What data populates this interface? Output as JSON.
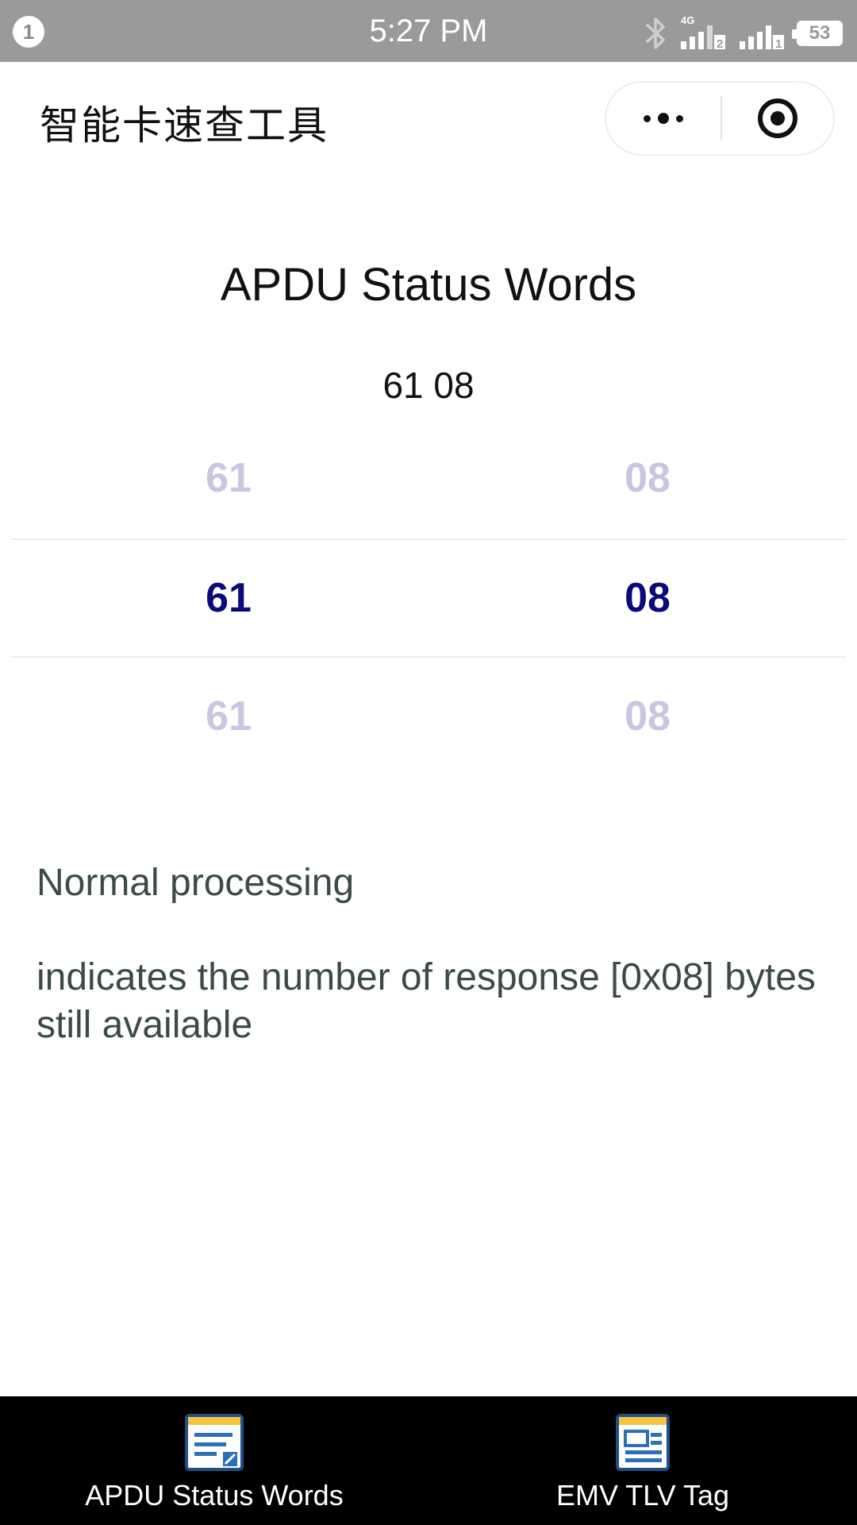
{
  "status_bar": {
    "notification_count": "1",
    "time": "5:27 PM",
    "network_label": "4G",
    "sim1_index": "2",
    "sim2_index": "1",
    "battery_level": "53",
    "icons": [
      "bluetooth-icon",
      "signal-icon",
      "signal-icon",
      "battery-icon"
    ]
  },
  "header": {
    "title": "智能卡速查工具",
    "more_icon": "more-dots-icon",
    "close_icon": "target-circle-icon"
  },
  "main": {
    "title": "APDU Status Words",
    "selected_code": "61 08",
    "picker": {
      "sw1": {
        "above": "61",
        "selected": "61",
        "below": "61"
      },
      "sw2": {
        "above": "08",
        "selected": "08",
        "below": "08"
      }
    },
    "category": "Normal processing",
    "detail": "indicates the number of response [0x08] bytes still available"
  },
  "tab_bar": {
    "tabs": [
      {
        "label": "APDU Status Words",
        "icon": "document-edit-icon",
        "active": true
      },
      {
        "label": "EMV TLV Tag",
        "icon": "newspaper-icon",
        "active": false
      }
    ]
  },
  "colors": {
    "status_bar_bg": "#9a9a9a",
    "picker_active": "#0a0a7a",
    "picker_faded": "#c9c6e2",
    "description_text": "#3c4b48",
    "tab_bar_bg": "#000000",
    "icon_accent_yellow": "#f5c542",
    "icon_accent_blue": "#2a6fb8"
  }
}
